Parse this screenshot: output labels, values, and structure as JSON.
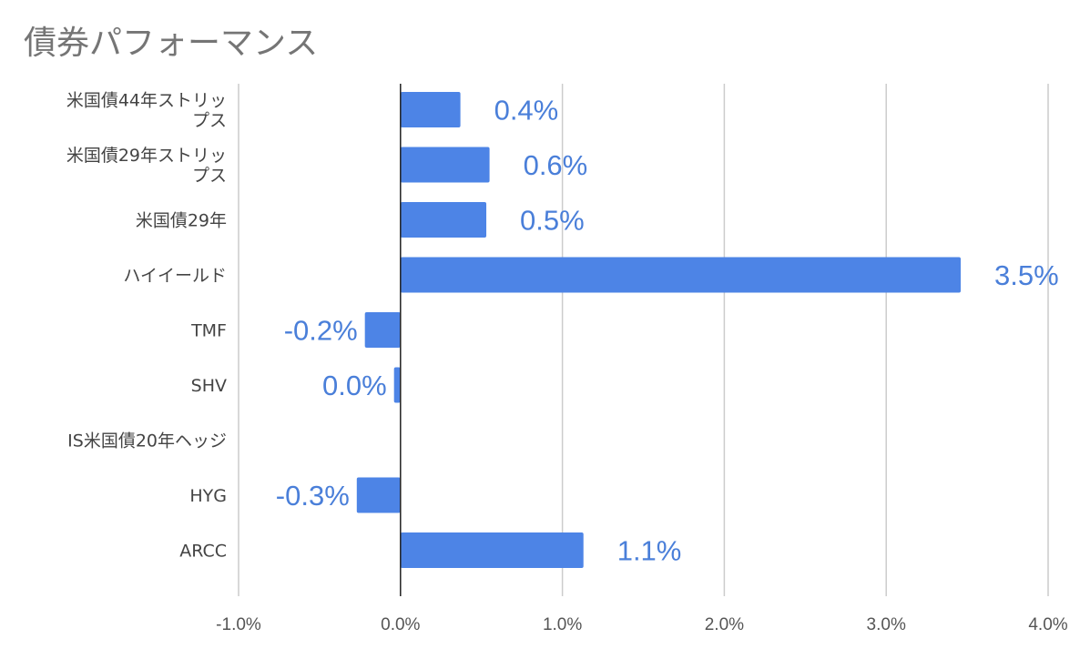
{
  "chart_data": {
    "type": "bar",
    "orientation": "horizontal",
    "title": "債券パフォーマンス",
    "categories": [
      "米国債44年ストリップス",
      "米国債29年ストリップス",
      "米国債29年",
      "ハイイールド",
      "TMF",
      "SHV",
      "IS米国債20年ヘッジ",
      "HYG",
      "ARCC"
    ],
    "category_label_lines": [
      [
        "米国債44年ストリッ",
        "プス"
      ],
      [
        "米国債29年ストリッ",
        "プス"
      ],
      [
        "米国債29年"
      ],
      [
        "ハイイールド"
      ],
      [
        "TMF"
      ],
      [
        "SHV"
      ],
      [
        "IS米国債20年ヘッジ"
      ],
      [
        "HYG"
      ],
      [
        "ARCC"
      ]
    ],
    "values": [
      0.37,
      0.55,
      0.53,
      3.46,
      -0.22,
      -0.04,
      null,
      -0.27,
      1.13
    ],
    "data_labels": [
      "0.4%",
      "0.6%",
      "0.5%",
      "3.5%",
      "-0.2%",
      "0.0%",
      "",
      "-0.3%",
      "1.1%"
    ],
    "xlim": [
      -1.0,
      4.0
    ],
    "x_ticks": [
      -1.0,
      0.0,
      1.0,
      2.0,
      3.0,
      4.0
    ],
    "x_tick_labels": [
      "-1.0%",
      "0.0%",
      "1.0%",
      "2.0%",
      "3.0%",
      "4.0%"
    ],
    "xlabel": "",
    "ylabel": "",
    "grid": true,
    "legend": "none",
    "bar_color": "#4d84e6",
    "label_color": "#4a7fd9"
  }
}
